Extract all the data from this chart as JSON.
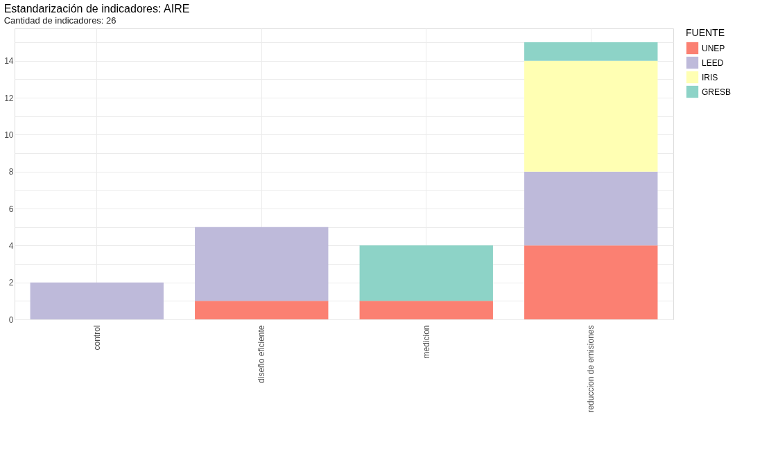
{
  "chart_data": {
    "type": "bar",
    "title": "Estandarización de indicadores: AIRE",
    "subtitle": "Cantidad de indicadores: 26",
    "categories": [
      "control",
      "diseño eficiente",
      "medicion",
      "reduccion de emisiones"
    ],
    "stacked": true,
    "legend_title": "FUENTE",
    "legend": "right",
    "grid": true,
    "ylim": [
      0,
      15.75
    ],
    "yticks": [
      0,
      {
        "value": 1,
        "label": null
      },
      2,
      {
        "value": 3,
        "label": null
      },
      4,
      {
        "value": 5,
        "label": null
      },
      6,
      {
        "value": 7,
        "label": null
      },
      8,
      {
        "value": 9,
        "label": null
      },
      10,
      {
        "value": 11,
        "label": null
      },
      12,
      {
        "value": 13,
        "label": null
      },
      14,
      {
        "value": 15,
        "label": null
      }
    ],
    "series": [
      {
        "name": "UNEP",
        "color": "#fb8072",
        "values": [
          0,
          1,
          1,
          4
        ]
      },
      {
        "name": "LEED",
        "color": "#bebada",
        "values": [
          2,
          4,
          0,
          4
        ]
      },
      {
        "name": "IRIS",
        "color": "#ffffb3",
        "values": [
          0,
          0,
          0,
          6
        ]
      },
      {
        "name": "GRESB",
        "color": "#8dd3c7",
        "values": [
          0,
          0,
          3,
          1
        ]
      }
    ]
  }
}
